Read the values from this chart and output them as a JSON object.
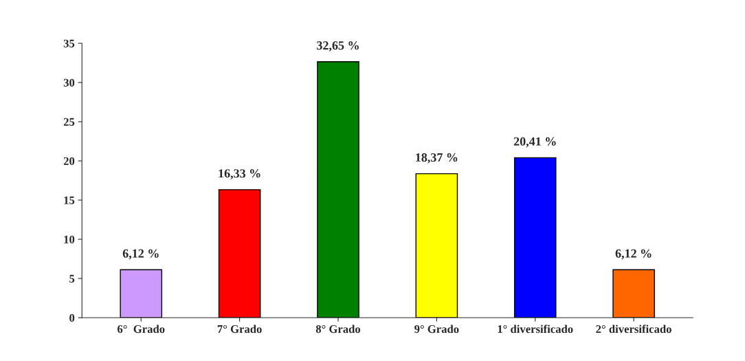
{
  "chart_data": {
    "type": "bar",
    "categories": [
      "6°  Grado",
      "7° Grado",
      "8° Grado",
      "9° Grado",
      "1° diversificado",
      "2° diversificado"
    ],
    "values": [
      6.12,
      16.33,
      32.65,
      18.37,
      20.41,
      6.12
    ],
    "value_labels": [
      "6,12 %",
      "16,33 %",
      "32,65 %",
      "18,37 %",
      "20,41 %",
      "6,12 %"
    ],
    "colors": [
      "#cc99ff",
      "#ff0000",
      "#008000",
      "#ffff00",
      "#0000ff",
      "#ff6600"
    ],
    "ylim": [
      0,
      35
    ],
    "yticks": [
      0,
      5,
      10,
      15,
      20,
      25,
      30,
      35
    ],
    "grid": false
  }
}
